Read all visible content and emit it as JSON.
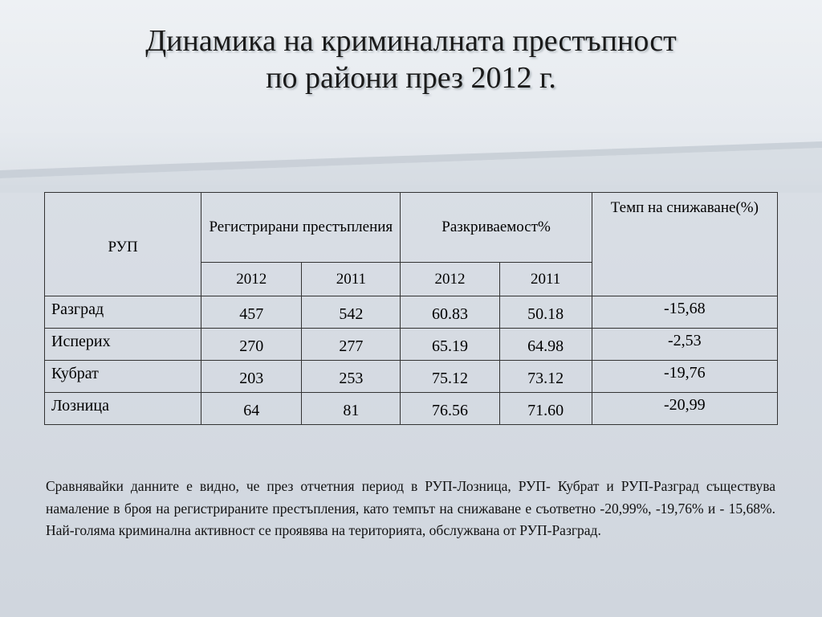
{
  "slide": {
    "title_line1": "Динамика на криминалната престъпност",
    "title_line2": "по райони през 2012 г."
  },
  "table": {
    "header": {
      "rup": "РУП",
      "registered": "Регистрирани престъпления",
      "detection": "Разкриваемост%",
      "tempo": "Темп на снижаване(%)",
      "years": [
        "2012",
        "2011",
        "2012",
        "2011"
      ]
    },
    "rows": [
      {
        "name": "Разград",
        "reg_2012": "457",
        "reg_2011": "542",
        "det_2012": "60.83",
        "det_2011": "50.18",
        "tempo": "-15,68"
      },
      {
        "name": "Исперих",
        "reg_2012": "270",
        "reg_2011": "277",
        "det_2012": "65.19",
        "det_2011": "64.98",
        "tempo": "-2,53"
      },
      {
        "name": "Кубрат",
        "reg_2012": "203",
        "reg_2011": "253",
        "det_2012": "75.12",
        "det_2011": "73.12",
        "tempo": "-19,76"
      },
      {
        "name": "Лозница",
        "reg_2012": "64",
        "reg_2011": "81",
        "det_2012": "76.56",
        "det_2011": "71.60",
        "tempo": "-20,99"
      }
    ]
  },
  "note": "Сравнявайки данните е видно, че през отчетния период в РУП-Лозница, РУП- Кубрат и РУП-Разград съществува намаление в броя на регистрираните престъпления, като темпът на снижаване е съответно -20,99%, -19,76% и - 15,68%. Най-голяма криминална активност се проявява на територията, обслужвана от РУП-Разград."
}
